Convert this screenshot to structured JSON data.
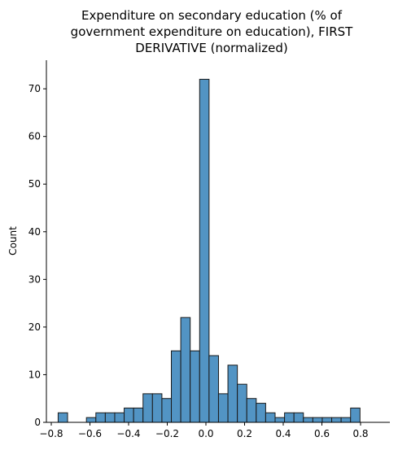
{
  "chart_data": {
    "type": "bar",
    "title_lines": [
      "Expenditure on secondary education (% of",
      "government expenditure on education), FIRST",
      "DERIVATIVE (normalized)"
    ],
    "xlabel": "",
    "ylabel": "Count",
    "xlim": [
      -0.8,
      0.9
    ],
    "ylim": [
      0,
      76
    ],
    "xticks": [
      "−0.8",
      "−0.6",
      "−0.4",
      "−0.2",
      "0.0",
      "0.2",
      "0.4",
      "0.6",
      "0.8"
    ],
    "yticks": [
      "0",
      "10",
      "20",
      "30",
      "40",
      "50",
      "60",
      "70"
    ],
    "bin_edges_start": -0.7645,
    "bin_width": 0.0488,
    "values": [
      2,
      0,
      0,
      1,
      2,
      2,
      2,
      3,
      3,
      6,
      6,
      5,
      15,
      22,
      15,
      72,
      14,
      6,
      12,
      8,
      5,
      4,
      2,
      1,
      2,
      2,
      1,
      1,
      1,
      1,
      1,
      3
    ],
    "bar_color": "#5294c4",
    "edge_color": "#1a1a1a",
    "grid": false
  }
}
